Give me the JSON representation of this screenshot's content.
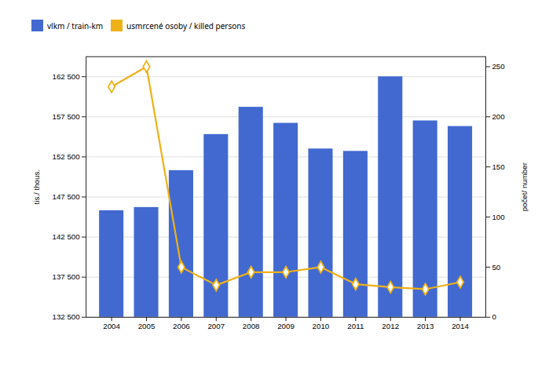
{
  "chart_data": {
    "type": "bar",
    "categories": [
      2004,
      2005,
      2006,
      2007,
      2008,
      2009,
      2010,
      2011,
      2012,
      2013,
      2014
    ],
    "series": [
      {
        "name": "vlkm / train-km",
        "type": "bar",
        "values": [
          145800,
          146200,
          150800,
          155300,
          158700,
          156700,
          153500,
          153200,
          162500,
          157000,
          156300
        ]
      },
      {
        "name": "usmrcené osoby / killed persons",
        "type": "line",
        "axis": "y2",
        "marker": "diamond",
        "values": [
          230,
          250,
          50,
          32,
          45,
          45,
          50,
          33,
          30,
          28,
          35
        ]
      }
    ],
    "ylabel": "tis./ thous.",
    "y2label": "počet/ number",
    "ylim": [
      132500,
      165000
    ],
    "yticks": [
      {
        "value": 132500,
        "label": "132 500"
      },
      {
        "value": 137500,
        "label": "137 500"
      },
      {
        "value": 142500,
        "label": "142 500"
      },
      {
        "value": 147500,
        "label": "147 500"
      },
      {
        "value": 152500,
        "label": "152 500"
      },
      {
        "value": 157500,
        "label": "157 500"
      },
      {
        "value": 162500,
        "label": "162 500"
      }
    ],
    "y2lim": [
      0,
      260
    ],
    "y2ticks": [
      0,
      50,
      100,
      150,
      200,
      250
    ],
    "grid": true
  }
}
